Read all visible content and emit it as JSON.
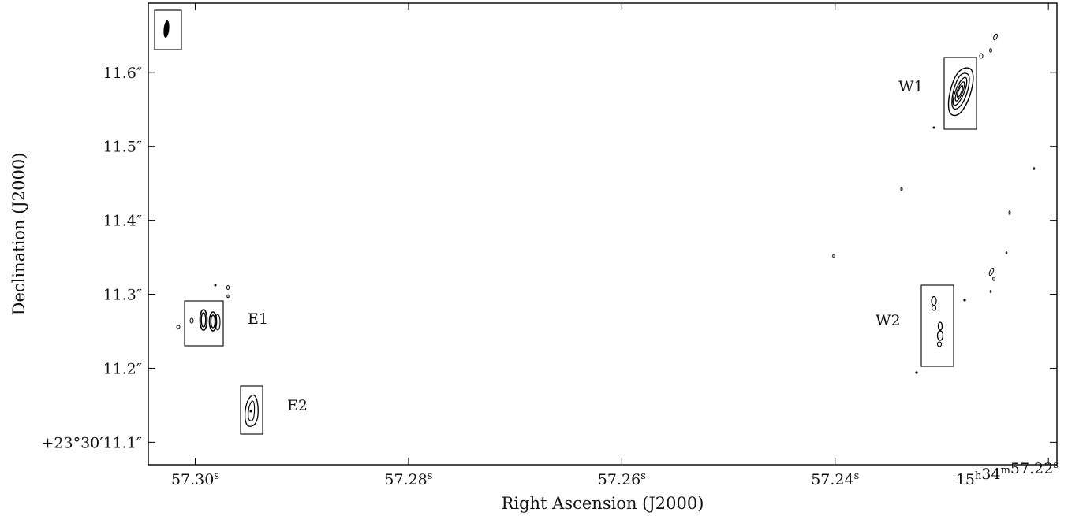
{
  "chart_data": {
    "type": "contour",
    "xlabel": "Right Ascension (J2000)",
    "ylabel": "Declination (J2000)",
    "x_ticks": [
      {
        "label": "57.30",
        "sup": "s",
        "value": 57.3
      },
      {
        "label": "57.28",
        "sup": "s",
        "value": 57.28
      },
      {
        "label": "57.26",
        "sup": "s",
        "value": 57.26
      },
      {
        "label": "57.24",
        "sup": "s",
        "value": 57.24
      },
      {
        "label": "15h34m57.22",
        "sup": "s",
        "value": 57.22
      }
    ],
    "y_ticks": [
      {
        "label": "11.6″",
        "value": 11.6
      },
      {
        "label": "11.5″",
        "value": 11.5
      },
      {
        "label": "11.4″",
        "value": 11.4
      },
      {
        "label": "11.3″",
        "value": 11.3
      },
      {
        "label": "11.2″",
        "value": 11.2
      },
      {
        "label": "+23°30′11.1″",
        "value": 11.1
      }
    ],
    "xlim": [
      57.3044,
      57.2192
    ],
    "ylim": [
      11.0695,
      11.6935
    ],
    "sources": [
      {
        "label": "E1",
        "ra": 57.2966,
        "dec": 11.237
      },
      {
        "label": "E2",
        "ra": 57.2912,
        "dec": 11.114
      },
      {
        "label": "W1",
        "ra": 57.2286,
        "dec": 11.561
      },
      {
        "label": "W2",
        "ra": 57.2292,
        "dec": 11.235
      }
    ],
    "beam": {
      "ra": 57.3028,
      "dec": 11.651
    }
  }
}
